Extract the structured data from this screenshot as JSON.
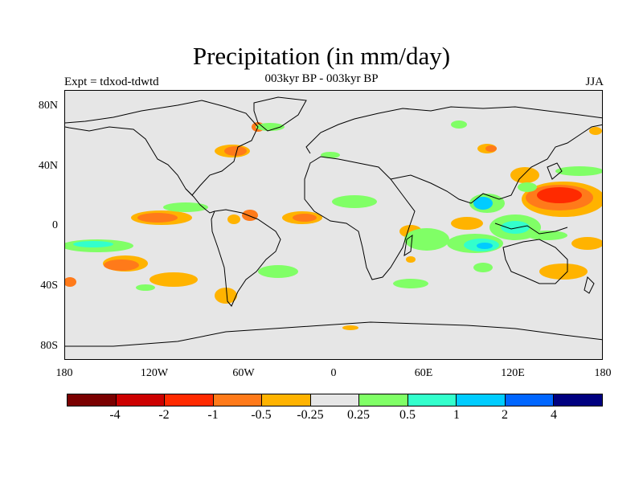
{
  "title": "Precipitation (in mm/day)",
  "subtitle": "003kyr BP - 003kyr BP",
  "left_label": "Expt = tdxod-tdwtd",
  "right_label": "JJA",
  "colors": {
    "ocean_background": "#e6e6e6",
    "coastline": "#000000",
    "colorbar": [
      "#7a0000",
      "#cc0000",
      "#ff2a00",
      "#ff7a1a",
      "#ffb300",
      "#e6e6e6",
      "#80ff66",
      "#33ffcc",
      "#00ccff",
      "#0066ff",
      "#000080"
    ]
  },
  "map": {
    "projection": "cylindrical-equidistant",
    "lon_range": [
      -180,
      180
    ],
    "lat_range": [
      -90,
      90
    ],
    "y_tick_labels": [
      "80N",
      "40N",
      "0",
      "40S",
      "80S"
    ],
    "x_tick_labels": [
      "180",
      "120W",
      "60W",
      "0",
      "60E",
      "120E",
      "180"
    ]
  },
  "colorbar": {
    "levels": [
      "-4",
      "-2",
      "-1",
      "-0.5",
      "-0.25",
      "0.25",
      "0.5",
      "1",
      "2",
      "4"
    ]
  }
}
